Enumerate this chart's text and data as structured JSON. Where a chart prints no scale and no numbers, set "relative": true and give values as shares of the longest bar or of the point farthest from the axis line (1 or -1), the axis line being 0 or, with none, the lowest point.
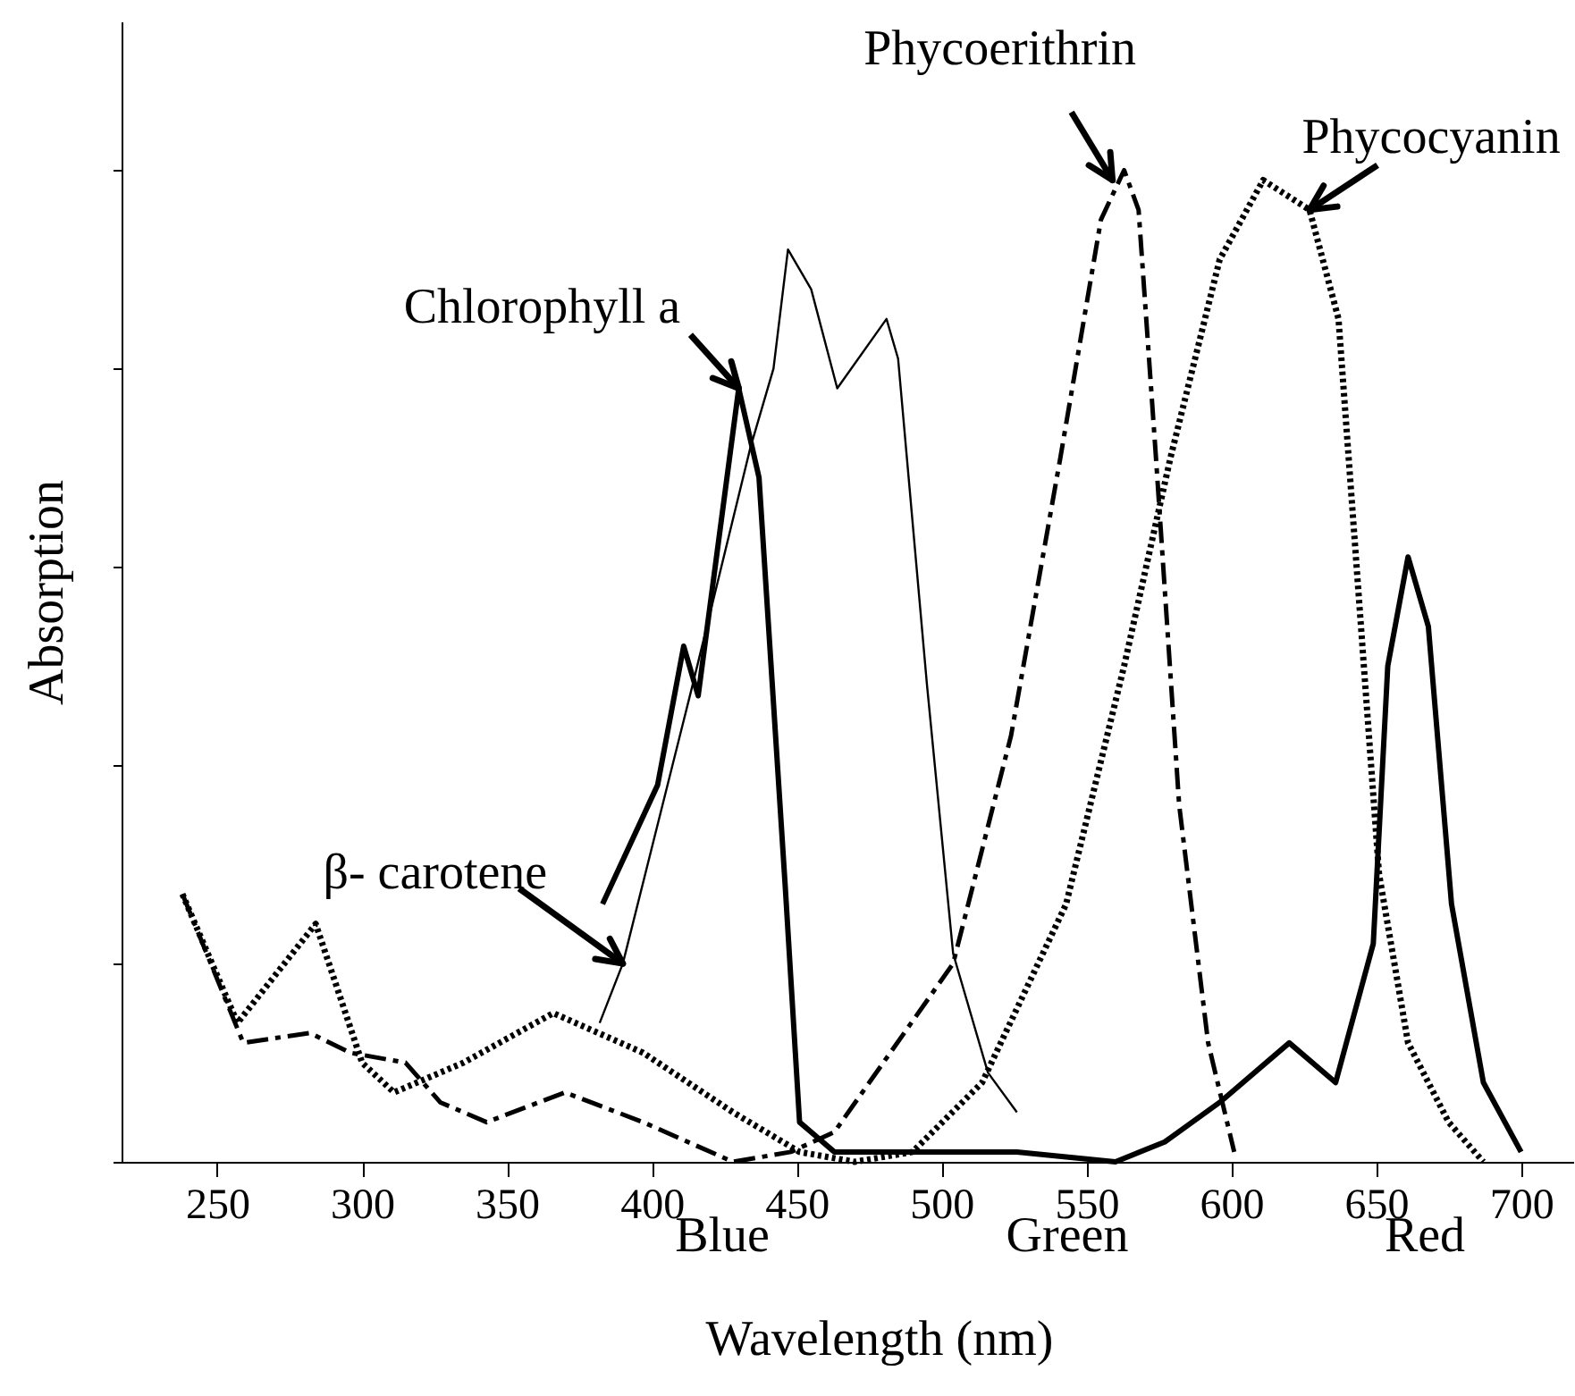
{
  "chart_data": {
    "type": "line",
    "relative": true,
    "xlabel": "Wavelength (nm)",
    "ylabel": "Absorption",
    "xlim": [
      217,
      718
    ],
    "xticks": [
      250,
      300,
      350,
      400,
      450,
      500,
      550,
      600,
      650,
      700
    ],
    "grid": false,
    "marker": "none",
    "series": [
      {
        "color": "#000000",
        "line_style": "dotted",
        "x": [
          238,
          257,
          284,
          300,
          311,
          335,
          366,
          397,
          428,
          451,
          470,
          490,
          514,
          543,
          563,
          579,
          596,
          611,
          627,
          637,
          644,
          651,
          661,
          675,
          687
        ],
        "values": [
          0.27,
          0.14,
          0.24,
          0.1,
          0.07,
          0.1,
          0.15,
          0.11,
          0.05,
          0.01,
          0.0,
          0.01,
          0.08,
          0.26,
          0.5,
          0.71,
          0.91,
          0.99,
          0.96,
          0.85,
          0.57,
          0.29,
          0.12,
          0.04,
          0.0
        ]
      },
      {
        "color": "#000000",
        "line_style": "dashed",
        "x": [
          238,
          259,
          282,
          296,
          315,
          327,
          343,
          370,
          397,
          428,
          448,
          463,
          504,
          524,
          541,
          555,
          563,
          568,
          574,
          582,
          592,
          601
        ],
        "values": [
          0.27,
          0.12,
          0.13,
          0.11,
          0.1,
          0.06,
          0.04,
          0.07,
          0.04,
          0.0,
          0.01,
          0.03,
          0.2,
          0.43,
          0.71,
          0.95,
          1.0,
          0.96,
          0.71,
          0.36,
          0.12,
          0.01
        ]
      },
      {
        "color": "#000000",
        "line_style": "solid",
        "x": [
          383,
          402,
          411,
          416,
          430,
          437,
          446,
          451,
          463,
          471,
          526,
          560,
          577,
          596,
          620,
          636,
          649,
          654,
          661,
          668,
          676,
          687,
          700
        ],
        "values": [
          0.26,
          0.38,
          0.52,
          0.47,
          0.78,
          0.69,
          0.28,
          0.04,
          0.01,
          0.01,
          0.01,
          0.0,
          0.02,
          0.06,
          0.12,
          0.08,
          0.22,
          0.5,
          0.61,
          0.54,
          0.26,
          0.08,
          0.01
        ]
      },
      {
        "color": "#000000",
        "line_style": "solid",
        "x": [
          382,
          390,
          414,
          434,
          442,
          447,
          455,
          464,
          481,
          485,
          495,
          504,
          516,
          526
        ],
        "values": [
          0.14,
          0.2,
          0.48,
          0.72,
          0.8,
          0.92,
          0.88,
          0.78,
          0.85,
          0.81,
          0.48,
          0.21,
          0.09,
          0.05
        ]
      }
    ],
    "annotations": [
      {
        "text": "Chlorophyll a",
        "x": 430,
        "y": 0.78
      },
      {
        "text": "β- carotene",
        "x": 390,
        "y": 0.2
      },
      {
        "text": "Phycoerithrin",
        "x": 559,
        "y": 0.99
      },
      {
        "text": "Phycocyanin",
        "x": 627,
        "y": 0.96
      },
      "Blue",
      "Green",
      "Red"
    ]
  }
}
